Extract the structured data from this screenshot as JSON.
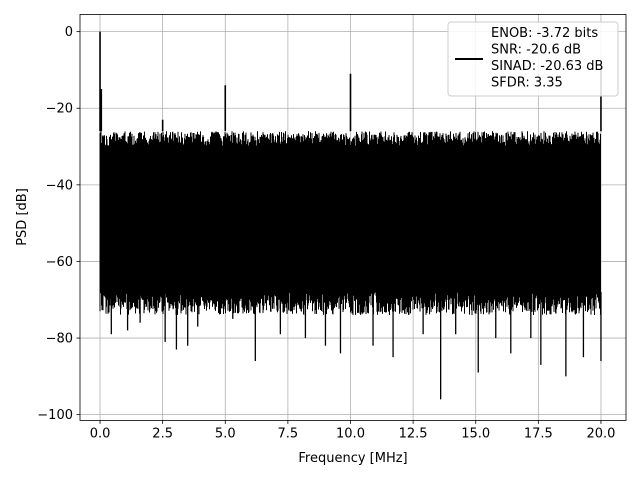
{
  "chart_data": {
    "type": "line",
    "xlabel": "Frequency [MHz]",
    "ylabel": "PSD [dB]",
    "xlim": [
      -0.8,
      21.0
    ],
    "ylim": [
      -101.5,
      4.5
    ],
    "xticks": [
      0.0,
      2.5,
      5.0,
      7.5,
      10.0,
      12.5,
      15.0,
      17.5,
      20.0
    ],
    "xtick_labels": [
      "0.0",
      "2.5",
      "5.0",
      "7.5",
      "10.0",
      "12.5",
      "15.0",
      "17.5",
      "20.0"
    ],
    "yticks": [
      0,
      -20,
      -40,
      -60,
      -80,
      -100
    ],
    "ytick_labels": [
      "0",
      "−20",
      "−40",
      "−60",
      "−80",
      "−100"
    ],
    "grid": true,
    "legend_position": "top-right",
    "legend_lines": [
      "ENOB: -3.72 bits",
      "SNR: -20.6 dB",
      "SINAD: -20.63 dB",
      "SFDR: 3.35"
    ],
    "series_color": "#000000",
    "noise_floor": {
      "x_range": [
        0.0,
        20.0
      ],
      "upper_db_approx": -26,
      "typical_low_db_approx": -68
    },
    "spurs": [
      {
        "x": 0.0,
        "y": 0.0
      },
      {
        "x": 0.05,
        "y": -15
      },
      {
        "x": 2.5,
        "y": -23
      },
      {
        "x": 5.0,
        "y": -14
      },
      {
        "x": 10.0,
        "y": -11
      },
      {
        "x": 20.0,
        "y": -8
      }
    ],
    "dips": [
      {
        "x": 0.1,
        "y": -62
      },
      {
        "x": 0.45,
        "y": -79
      },
      {
        "x": 1.1,
        "y": -78
      },
      {
        "x": 1.6,
        "y": -76
      },
      {
        "x": 2.6,
        "y": -81
      },
      {
        "x": 3.05,
        "y": -83
      },
      {
        "x": 3.5,
        "y": -82
      },
      {
        "x": 3.9,
        "y": -77
      },
      {
        "x": 5.3,
        "y": -75
      },
      {
        "x": 6.2,
        "y": -86
      },
      {
        "x": 7.2,
        "y": -79
      },
      {
        "x": 8.2,
        "y": -80
      },
      {
        "x": 9.0,
        "y": -82
      },
      {
        "x": 9.6,
        "y": -84
      },
      {
        "x": 10.9,
        "y": -82
      },
      {
        "x": 11.7,
        "y": -85
      },
      {
        "x": 12.9,
        "y": -79
      },
      {
        "x": 13.6,
        "y": -96
      },
      {
        "x": 14.2,
        "y": -79
      },
      {
        "x": 15.1,
        "y": -89
      },
      {
        "x": 15.8,
        "y": -80
      },
      {
        "x": 16.4,
        "y": -84
      },
      {
        "x": 17.2,
        "y": -80
      },
      {
        "x": 17.6,
        "y": -87
      },
      {
        "x": 18.6,
        "y": -90
      },
      {
        "x": 19.3,
        "y": -85
      },
      {
        "x": 20.0,
        "y": -86
      }
    ]
  }
}
